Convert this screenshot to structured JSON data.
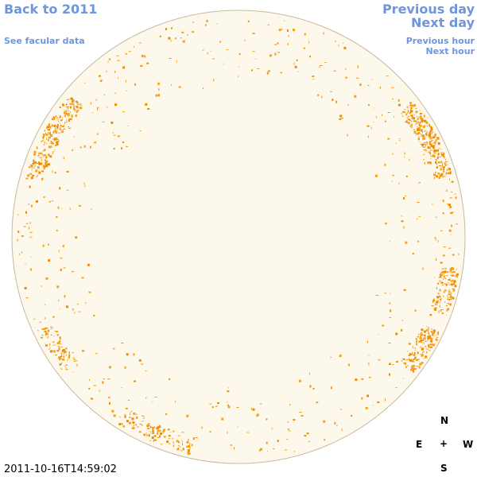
{
  "header": {
    "back_link": "Back to 2011",
    "facular_link": "See facular data",
    "previous_day": "Previous day",
    "next_day": "Next day",
    "previous_hour": "Previous hour",
    "next_hour": "Next hour"
  },
  "timestamp": "2011-10-16T14:59:02",
  "compass": {
    "north": "N",
    "east": "E",
    "center": "+",
    "west": "W",
    "south": "S"
  }
}
